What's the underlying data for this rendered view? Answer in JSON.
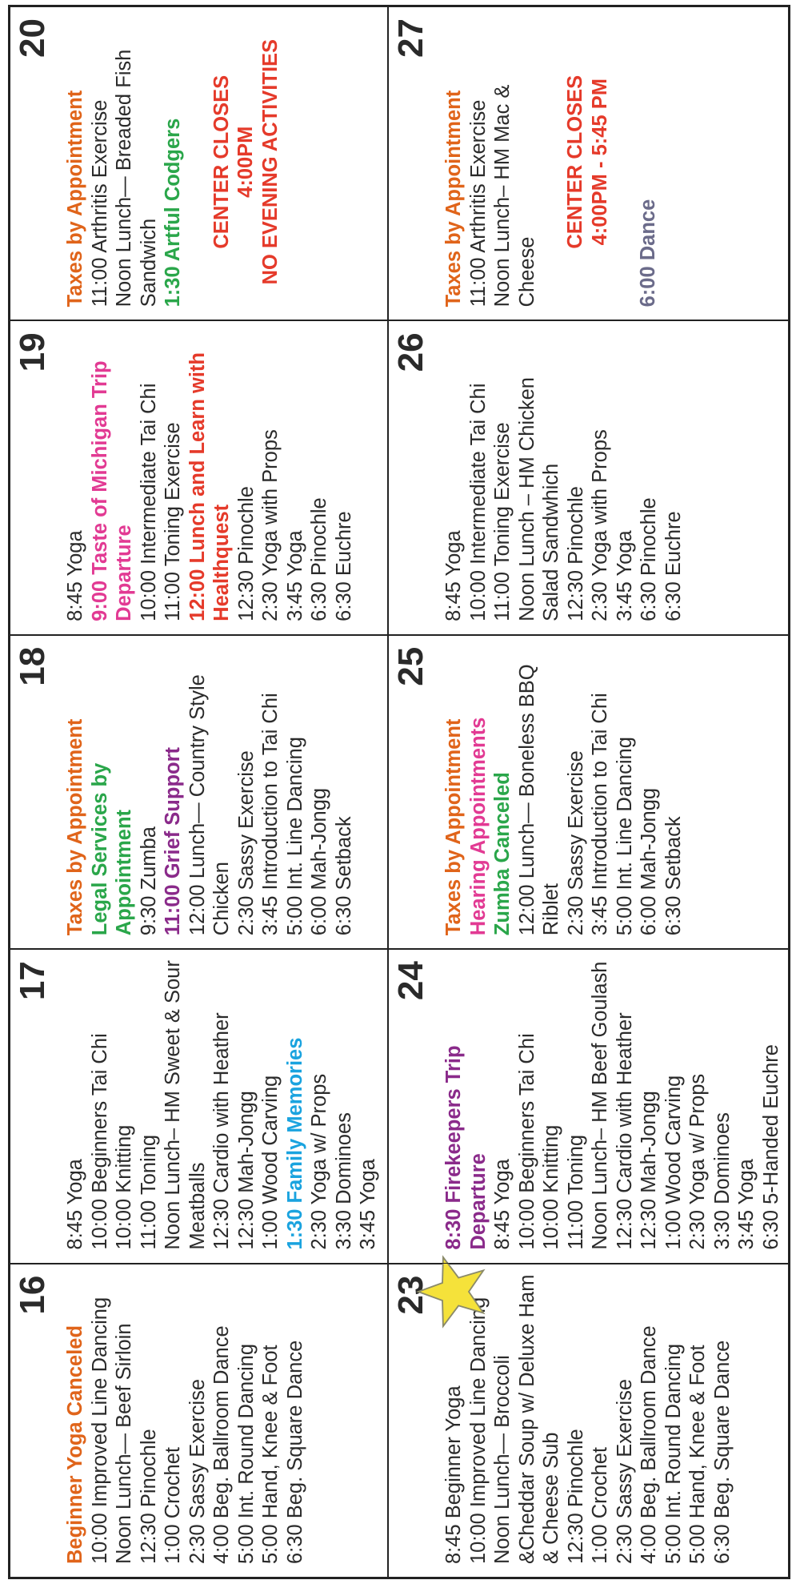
{
  "colors": {
    "orange": "#e0641a",
    "green": "#2aa64a",
    "purple": "#8a2a8a",
    "pink": "#e23a93",
    "red": "#e53a2a",
    "blue": "#1aa3df",
    "gray": "#6b6b8a",
    "star_fill": "#f5e23a"
  },
  "week1": {
    "d16": {
      "num": "16",
      "lines": [
        "Beginner Yoga Canceled",
        "10:00 Improved Line Dancing",
        "Noon Lunch— Beef Sirloin",
        "12:30 Pinochle",
        "1:00  Crochet",
        "2:30  Sassy Exercise",
        "4:00  Beg. Ballroom Dance",
        "5:00  Int. Round Dancing",
        "5:00  Hand, Knee & Foot",
        "6:30  Beg. Square Dance"
      ]
    },
    "d17": {
      "num": "17",
      "lines": [
        "8:45 Yoga",
        "10:00 Beginners Tai Chi",
        "10:00  Knitting",
        "11:00 Toning",
        "Noon Lunch– HM Sweet & Sour Meatballs",
        "12:30 Cardio with Heather",
        "12:30 Mah-Jongg",
        "1:00 Wood Carving",
        "1:30  Family Memories",
        "2:30 Yoga w/ Props",
        "3:30 Dominoes",
        "3:45 Yoga"
      ]
    },
    "d18": {
      "num": "18",
      "lines": [
        "Taxes by Appointment",
        "Legal Services by Appointment",
        "9:30  Zumba",
        "11:00 Grief Support",
        "12:00 Lunch— Country Style Chicken",
        "2:30  Sassy Exercise",
        "3:45 Introduction to Tai Chi",
        "5:00  Int. Line Dancing",
        "6:00  Mah-Jongg",
        "6:30  Setback"
      ]
    },
    "d19": {
      "num": "19",
      "lines": [
        "8:45  Yoga",
        "9:00 Taste of Michigan Trip Departure",
        "10:00 Intermediate Tai Chi",
        "11:00 Toning Exercise",
        "12:00 Lunch and Learn with Healthquest",
        "12:30 Pinochle",
        "2:30 Yoga with Props",
        "3:45  Yoga",
        "6:30  Pinochle",
        "6:30  Euchre"
      ]
    },
    "d20": {
      "num": "20",
      "lines": [
        "Taxes by Appointment",
        "11:00 Arthritis Exercise",
        "Noon Lunch— Breaded Fish Sandwich",
        "1:30 Artful Codgers",
        "CENTER CLOSES",
        "4:00PM",
        "NO EVENING ACTIVITIES"
      ]
    }
  },
  "week2": {
    "d23": {
      "num": "23",
      "lines": [
        "8:45  Beginner Yoga",
        "10:00 Improved Line Dancing",
        "Noon Lunch— Broccoli &Cheddar Soup w/ Deluxe Ham & Cheese Sub",
        "12:30 Pinochle",
        "1:00  Crochet",
        "2:30  Sassy Exercise",
        "4:00  Beg. Ballroom Dance",
        "5:00  Int. Round Dancing",
        "5:00  Hand, Knee & Foot",
        "6:30  Beg. Square Dance"
      ]
    },
    "d24": {
      "num": "24",
      "lines": [
        "8:30 Firekeepers Trip Departure",
        "8:45 Yoga",
        "10:00 Beginners Tai Chi",
        "10:00  Knitting",
        "11:00 Toning",
        "Noon Lunch– HM Beef Goulash",
        "12:30 Cardio with Heather",
        "12:30 Mah-Jongg",
        "1:00 Wood Carving",
        "2:30 Yoga w/ Props",
        "3:30 Dominoes",
        "3:45 Yoga",
        "6:30 5-Handed Euchre"
      ]
    },
    "d25": {
      "num": "25",
      "lines": [
        "Taxes by Appointment",
        "Hearing Appointments",
        "Zumba Canceled",
        "12:00 Lunch— Boneless BBQ Riblet",
        "2:30  Sassy Exercise",
        "3:45 Introduction to Tai Chi",
        "5:00  Int. Line Dancing",
        "6:00  Mah-Jongg",
        "6:30  Setback"
      ]
    },
    "d26": {
      "num": "26",
      "lines": [
        "8:45  Yoga",
        "10:00 Intermediate Tai Chi",
        "11:00 Toning Exercise",
        "Noon  Lunch – HM Chicken Salad Sandwhich",
        "12:30 Pinochle",
        "2:30 Yoga with Props",
        "3:45  Yoga",
        "6:30  Pinochle",
        "6:30  Euchre"
      ]
    },
    "d27": {
      "num": "27",
      "lines": [
        "Taxes by Appointment",
        "11:00 Arthritis Exercise",
        "Noon Lunch– HM Mac & Cheese",
        "CENTER CLOSES",
        "4:00PM - 5:45 PM",
        "6:00 Dance"
      ]
    }
  }
}
